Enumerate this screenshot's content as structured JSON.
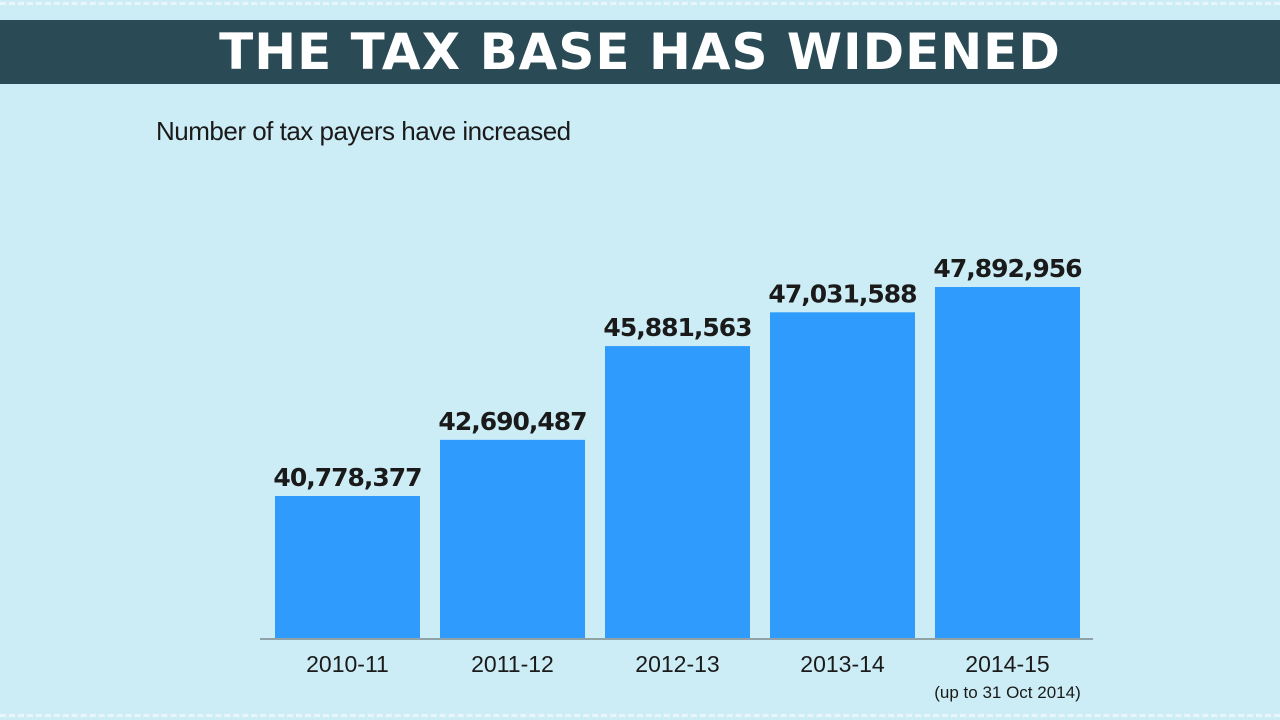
{
  "header": {
    "title": "THE TAX BASE HAS WIDENED"
  },
  "colors": {
    "background": "#cdedf6",
    "title_bar": "#2a4b55",
    "bar": "#2f9bfc",
    "axis": "#8fa2a8",
    "text": "#1a1a1a"
  },
  "chart_data": {
    "type": "bar",
    "title": "",
    "subtitle": "Number of tax payers have increased",
    "xlabel": "",
    "ylabel": "",
    "categories": [
      "2010-11",
      "2011-12",
      "2012-13",
      "2013-14",
      "2014-15"
    ],
    "category_notes": [
      "",
      "",
      "",
      "",
      "(up to 31 Oct 2014)"
    ],
    "values": [
      40778377,
      42690487,
      45881563,
      47031588,
      47892956
    ],
    "value_labels": [
      "40,778,377",
      "42,690,487",
      "45,881,563",
      "47,031,588",
      "47,892,956"
    ],
    "ylim": [
      30000000,
      50000000
    ],
    "grid": false,
    "legend": "none"
  }
}
